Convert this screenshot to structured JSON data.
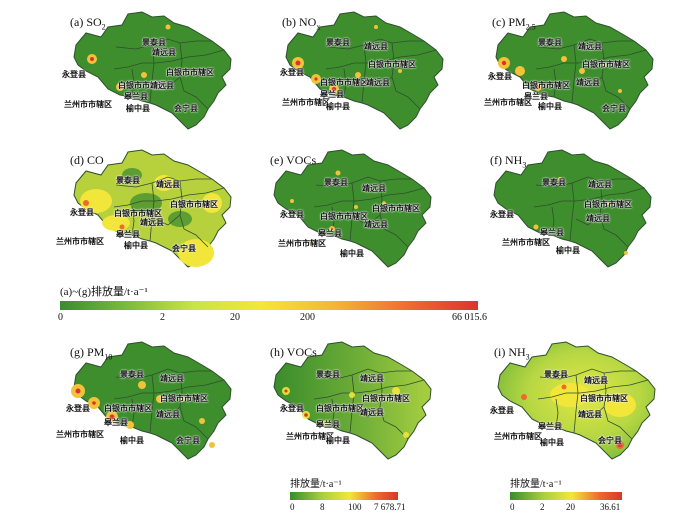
{
  "panels": [
    {
      "id": "a",
      "label": "(a) SO",
      "sub": "2",
      "style": "green"
    },
    {
      "id": "b",
      "label": "(b) NO",
      "sub": "x",
      "style": "green"
    },
    {
      "id": "c",
      "label": "(c) PM",
      "sub": "2.5",
      "style": "green"
    },
    {
      "id": "d",
      "label": "(d) CO",
      "sub": "",
      "style": "yellow"
    },
    {
      "id": "e",
      "label": "(e) VOCs",
      "sub": "",
      "style": "green"
    },
    {
      "id": "f",
      "label": "(f) NH",
      "sub": "3",
      "style": "green"
    },
    {
      "id": "g",
      "label": "(g) PM",
      "sub": "10",
      "style": "green"
    },
    {
      "id": "h",
      "label": "(h) VOCs",
      "sub": "",
      "style": "gradient"
    },
    {
      "id": "i",
      "label": "(i) NH",
      "sub": "3",
      "style": "yellowgreen"
    }
  ],
  "county_labels": {
    "jingtai": "景泰县",
    "jingyuan": "靖远县",
    "yongdeng": "永登县",
    "baiyin_city": "白银市市辖区",
    "baiyin_district": "白银市市辖区",
    "gaolan": "皋兰县",
    "lanzhou_city": "兰州市市辖区",
    "yuzhong": "榆中县",
    "huining": "会宁县"
  },
  "legend_main": {
    "title": "(a)~(g)排放量/t·a⁻¹",
    "ticks": [
      "0",
      "2",
      "20",
      "200",
      "66 015.6"
    ]
  },
  "legend_h": {
    "title": "排放量/t·a⁻¹",
    "ticks": [
      "0",
      "8",
      "100",
      "7 678.71"
    ]
  },
  "legend_i": {
    "title": "排放量/t·a⁻¹",
    "ticks": [
      "0",
      "2",
      "20",
      "36.61"
    ]
  },
  "colors": {
    "low": "#3e8e2e",
    "mid": "#f2e63a",
    "high": "#d9362a",
    "border": "#2f4f2f"
  }
}
